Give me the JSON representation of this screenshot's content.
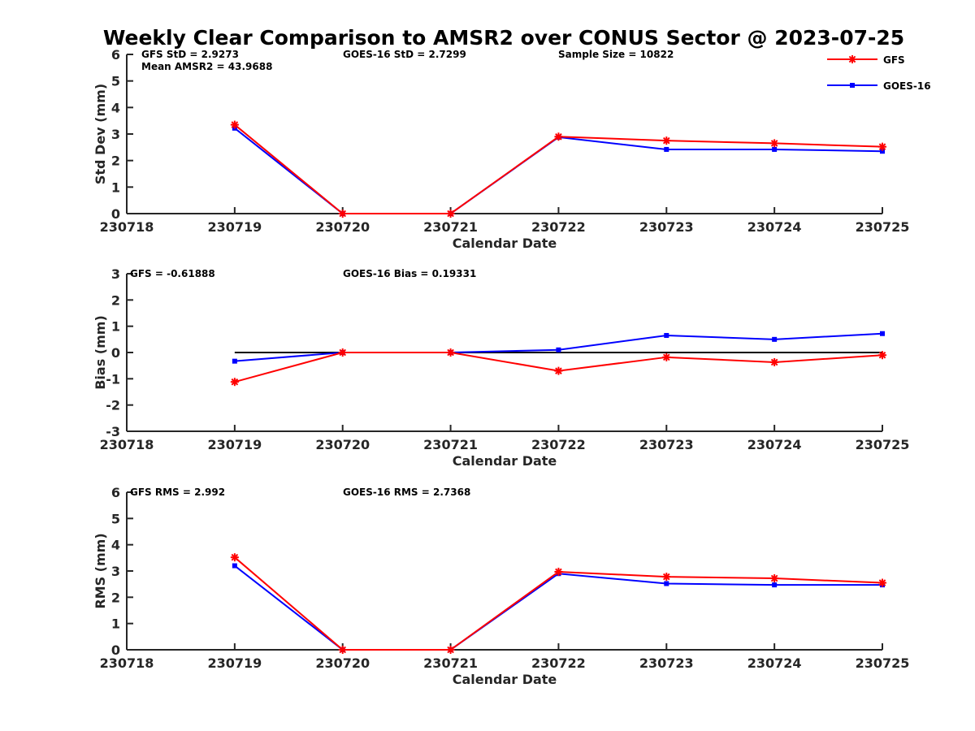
{
  "title": "Weekly Clear Comparison to AMSR2 over CONUS Sector @ 2023-07-25",
  "colors": {
    "GFS": "#ff0000",
    "GOES-16": "#0000ff",
    "zero_line": "#000000",
    "axis": "#262626"
  },
  "legend": {
    "placement": "top-right",
    "items": [
      {
        "name": "GFS",
        "marker": "asterisk",
        "color": "#ff0000"
      },
      {
        "name": "GOES-16",
        "marker": "square",
        "color": "#0000ff"
      }
    ]
  },
  "chart_data": [
    {
      "type": "line",
      "ylabel": "Std Dev (mm)",
      "xlabel": "Calendar Date",
      "xlim": [
        230718,
        230725
      ],
      "ylim": [
        0,
        6
      ],
      "xticks": [
        "230718",
        "230719",
        "230720",
        "230721",
        "230722",
        "230723",
        "230724",
        "230725"
      ],
      "yticks": [
        "0",
        "1",
        "2",
        "3",
        "4",
        "5",
        "6"
      ],
      "grid": false,
      "zero_line": false,
      "annotations": [
        {
          "text": "GFS StD = 2.9273",
          "anchor": "col1-row1"
        },
        {
          "text": "Mean AMSR2 = 43.9688",
          "anchor": "col1-row2"
        },
        {
          "text": "GOES-16 StD = 2.7299",
          "anchor": "col2-row1"
        },
        {
          "text": "Sample Size = 10822",
          "anchor": "col3-row1"
        }
      ],
      "x": [
        "230719",
        "230720",
        "230721",
        "230722",
        "230723",
        "230724",
        "230725"
      ],
      "series": [
        {
          "name": "GFS",
          "values": [
            3.35,
            0.0,
            0.0,
            2.9,
            2.75,
            2.65,
            2.52
          ]
        },
        {
          "name": "GOES-16",
          "values": [
            3.22,
            0.0,
            0.0,
            2.88,
            2.42,
            2.42,
            2.35
          ]
        }
      ]
    },
    {
      "type": "line",
      "ylabel": "Bias (mm)",
      "xlabel": "Calendar Date",
      "xlim": [
        230718,
        230725
      ],
      "ylim": [
        -3,
        3
      ],
      "xticks": [
        "230718",
        "230719",
        "230720",
        "230721",
        "230722",
        "230723",
        "230724",
        "230725"
      ],
      "yticks": [
        "-3",
        "-2",
        "-1",
        "0",
        "1",
        "2",
        "3"
      ],
      "grid": false,
      "zero_line": true,
      "annotations": [
        {
          "text": "GFS = -0.61888",
          "anchor": "col0-row1"
        },
        {
          "text": "GOES-16 Bias  = 0.19331",
          "anchor": "col2-row1"
        }
      ],
      "x": [
        "230719",
        "230720",
        "230721",
        "230722",
        "230723",
        "230724",
        "230725"
      ],
      "series": [
        {
          "name": "GFS",
          "values": [
            -1.12,
            0.0,
            0.0,
            -0.7,
            -0.18,
            -0.37,
            -0.1
          ]
        },
        {
          "name": "GOES-16",
          "values": [
            -0.33,
            0.0,
            0.0,
            0.1,
            0.65,
            0.5,
            0.72
          ]
        }
      ]
    },
    {
      "type": "line",
      "ylabel": "RMS (mm)",
      "xlabel": "Calendar Date",
      "xlim": [
        230718,
        230725
      ],
      "ylim": [
        0,
        6
      ],
      "xticks": [
        "230718",
        "230719",
        "230720",
        "230721",
        "230722",
        "230723",
        "230724",
        "230725"
      ],
      "yticks": [
        "0",
        "1",
        "2",
        "3",
        "4",
        "5",
        "6"
      ],
      "grid": false,
      "zero_line": false,
      "annotations": [
        {
          "text": "GFS RMS = 2.992",
          "anchor": "col0-row1"
        },
        {
          "text": "GOES-16 RMS = 2.7368",
          "anchor": "col2-row1"
        }
      ],
      "x": [
        "230719",
        "230720",
        "230721",
        "230722",
        "230723",
        "230724",
        "230725"
      ],
      "series": [
        {
          "name": "GFS",
          "values": [
            3.52,
            0.0,
            0.0,
            2.97,
            2.78,
            2.72,
            2.55
          ]
        },
        {
          "name": "GOES-16",
          "values": [
            3.2,
            0.0,
            0.0,
            2.9,
            2.52,
            2.47,
            2.47
          ]
        }
      ]
    }
  ]
}
